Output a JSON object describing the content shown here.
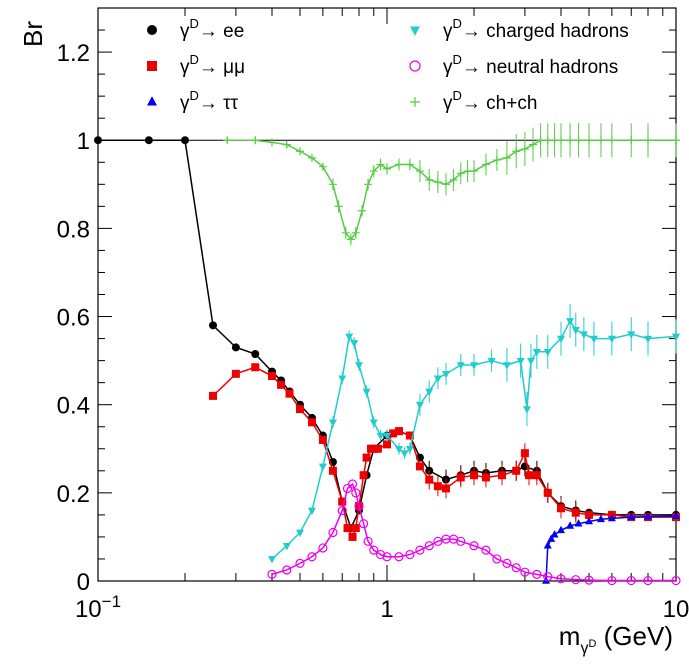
{
  "chart_data": {
    "type": "line",
    "title": "",
    "ylabel": "Br",
    "xlabel": "m_{γD} (GeV)",
    "xscale": "log",
    "xlim": [
      0.1,
      10
    ],
    "ylim": [
      0,
      1.3
    ],
    "x_ticks": [
      {
        "value": 0.1,
        "base": "10",
        "exp": "−1"
      },
      {
        "value": 1,
        "base": "1",
        "exp": ""
      },
      {
        "value": 10,
        "base": "10",
        "exp": ""
      }
    ],
    "y_ticks": [
      {
        "value": 0,
        "label": "0"
      },
      {
        "value": 0.2,
        "label": "0.2"
      },
      {
        "value": 0.4,
        "label": "0.4"
      },
      {
        "value": 0.6,
        "label": "0.6"
      },
      {
        "value": 0.8,
        "label": "0.8"
      },
      {
        "value": 1,
        "label": "1"
      },
      {
        "value": 1.2,
        "label": "1.2"
      }
    ],
    "reference_line": 1,
    "legend_position": "top",
    "series": [
      {
        "name": "γD→ ee",
        "name_sym": "γ",
        "name_sup": "D",
        "name_rest": "→ ee",
        "color": "#000000",
        "marker": "circle-filled",
        "x": [
          0.1,
          0.15,
          0.2,
          0.25,
          0.3,
          0.35,
          0.4,
          0.43,
          0.46,
          0.5,
          0.55,
          0.6,
          0.65,
          0.7,
          0.75,
          0.8,
          0.85,
          0.9,
          1.0,
          1.1,
          1.2,
          1.3,
          1.4,
          1.6,
          1.8,
          2.0,
          2.2,
          2.5,
          2.8,
          3.0,
          3.3,
          3.6,
          4.0,
          4.5,
          5,
          6,
          7,
          8,
          10
        ],
        "y": [
          1.0,
          1.0,
          1.0,
          0.58,
          0.53,
          0.515,
          0.475,
          0.455,
          0.43,
          0.4,
          0.37,
          0.33,
          0.27,
          0.18,
          0.12,
          0.16,
          0.24,
          0.3,
          0.33,
          0.34,
          0.33,
          0.28,
          0.25,
          0.23,
          0.24,
          0.25,
          0.245,
          0.25,
          0.25,
          0.26,
          0.25,
          0.2,
          0.17,
          0.16,
          0.155,
          0.15,
          0.15,
          0.15,
          0.15
        ]
      },
      {
        "name": "γD→ μμ",
        "name_sym": "γ",
        "name_sup": "D",
        "name_rest": "→ μμ",
        "color": "#ee0000",
        "marker": "square-filled",
        "x": [
          0.25,
          0.3,
          0.35,
          0.4,
          0.43,
          0.46,
          0.5,
          0.55,
          0.6,
          0.65,
          0.7,
          0.73,
          0.76,
          0.78,
          0.8,
          0.83,
          0.85,
          0.88,
          0.9,
          0.93,
          1.0,
          1.05,
          1.1,
          1.2,
          1.3,
          1.4,
          1.5,
          1.6,
          1.8,
          2.0,
          2.2,
          2.5,
          2.8,
          3.0,
          3.1,
          3.3,
          3.6,
          4.0,
          4.5,
          5,
          6,
          7,
          8,
          10
        ],
        "y": [
          0.42,
          0.47,
          0.485,
          0.465,
          0.445,
          0.425,
          0.39,
          0.36,
          0.32,
          0.25,
          0.18,
          0.12,
          0.1,
          0.12,
          0.17,
          0.24,
          0.28,
          0.3,
          0.3,
          0.3,
          0.31,
          0.335,
          0.34,
          0.33,
          0.26,
          0.23,
          0.215,
          0.21,
          0.235,
          0.24,
          0.235,
          0.24,
          0.25,
          0.29,
          0.24,
          0.24,
          0.2,
          0.165,
          0.155,
          0.15,
          0.15,
          0.145,
          0.145,
          0.145
        ]
      },
      {
        "name": "γD→ ττ",
        "name_sym": "γ",
        "name_sup": "D",
        "name_rest": "→ ττ",
        "color": "#0000ee",
        "marker": "triangle-up-filled",
        "x": [
          3.55,
          3.6,
          3.7,
          3.8,
          4.0,
          4.3,
          4.6,
          5,
          5.5,
          6,
          7,
          8,
          10
        ],
        "y": [
          0.0,
          0.08,
          0.095,
          0.105,
          0.115,
          0.125,
          0.13,
          0.135,
          0.14,
          0.142,
          0.145,
          0.146,
          0.147
        ]
      },
      {
        "name": "γD→ charged hadrons",
        "name_sym": "γ",
        "name_sup": "D",
        "name_rest": "→ charged hadrons",
        "color": "#22cccc",
        "marker": "triangle-down-filled",
        "x": [
          0.4,
          0.45,
          0.5,
          0.55,
          0.6,
          0.65,
          0.7,
          0.74,
          0.77,
          0.8,
          0.85,
          0.9,
          0.95,
          1.0,
          1.1,
          1.15,
          1.2,
          1.3,
          1.4,
          1.5,
          1.6,
          1.8,
          2.0,
          2.3,
          2.6,
          2.9,
          3.05,
          3.15,
          3.3,
          3.6,
          4.0,
          4.3,
          4.5,
          4.8,
          5.2,
          6,
          7,
          8,
          10
        ],
        "y": [
          0.05,
          0.08,
          0.11,
          0.16,
          0.26,
          0.36,
          0.46,
          0.555,
          0.54,
          0.49,
          0.43,
          0.36,
          0.33,
          0.33,
          0.3,
          0.29,
          0.3,
          0.4,
          0.43,
          0.46,
          0.47,
          0.49,
          0.49,
          0.5,
          0.49,
          0.5,
          0.39,
          0.5,
          0.52,
          0.52,
          0.55,
          0.59,
          0.57,
          0.56,
          0.55,
          0.55,
          0.56,
          0.55,
          0.555
        ]
      },
      {
        "name": "γD→ neutral hadrons",
        "name_sym": "γ",
        "name_sup": "D",
        "name_rest": "→ neutral hadrons",
        "color": "#ee00ee",
        "marker": "circle-open",
        "x": [
          0.4,
          0.45,
          0.5,
          0.55,
          0.6,
          0.65,
          0.7,
          0.73,
          0.76,
          0.78,
          0.8,
          0.83,
          0.86,
          0.9,
          0.95,
          1.0,
          1.1,
          1.2,
          1.3,
          1.4,
          1.5,
          1.6,
          1.7,
          1.8,
          2.0,
          2.2,
          2.4,
          2.6,
          2.8,
          3.0,
          3.3,
          3.6,
          4.0,
          4.5,
          5,
          6,
          7,
          8,
          10
        ],
        "y": [
          0.015,
          0.025,
          0.04,
          0.055,
          0.075,
          0.11,
          0.16,
          0.21,
          0.22,
          0.2,
          0.17,
          0.13,
          0.09,
          0.07,
          0.06,
          0.055,
          0.055,
          0.06,
          0.07,
          0.08,
          0.09,
          0.095,
          0.095,
          0.09,
          0.08,
          0.07,
          0.05,
          0.04,
          0.03,
          0.02,
          0.015,
          0.01,
          0.005,
          0.003,
          0.002,
          0.001,
          0.001,
          0.001,
          0.001
        ]
      },
      {
        "name": "γD→ ch+ch",
        "name_sym": "γ",
        "name_sup": "D",
        "name_rest": "→ ch+ch",
        "color": "#55cc44",
        "marker": "plus",
        "x": [
          0.28,
          0.35,
          0.4,
          0.45,
          0.5,
          0.55,
          0.6,
          0.65,
          0.68,
          0.72,
          0.75,
          0.78,
          0.82,
          0.86,
          0.9,
          0.95,
          1.0,
          1.1,
          1.2,
          1.3,
          1.4,
          1.5,
          1.6,
          1.7,
          1.8,
          1.9,
          2.0,
          2.2,
          2.4,
          2.6,
          2.8,
          3.0,
          3.2,
          3.4,
          3.6,
          3.8,
          4.0,
          4.3,
          4.6,
          5.0,
          5.5,
          6,
          7,
          8,
          10
        ],
        "y": [
          1.0,
          1.0,
          0.995,
          0.99,
          0.975,
          0.96,
          0.94,
          0.9,
          0.85,
          0.79,
          0.775,
          0.79,
          0.84,
          0.9,
          0.93,
          0.945,
          0.935,
          0.945,
          0.945,
          0.93,
          0.91,
          0.905,
          0.9,
          0.91,
          0.925,
          0.93,
          0.93,
          0.945,
          0.955,
          0.96,
          0.975,
          0.98,
          0.99,
          1.0,
          1.0,
          1.0,
          1.0,
          1.0,
          1.0,
          1.0,
          1.0,
          1.0,
          1.0,
          1.0,
          1.0
        ]
      }
    ]
  }
}
